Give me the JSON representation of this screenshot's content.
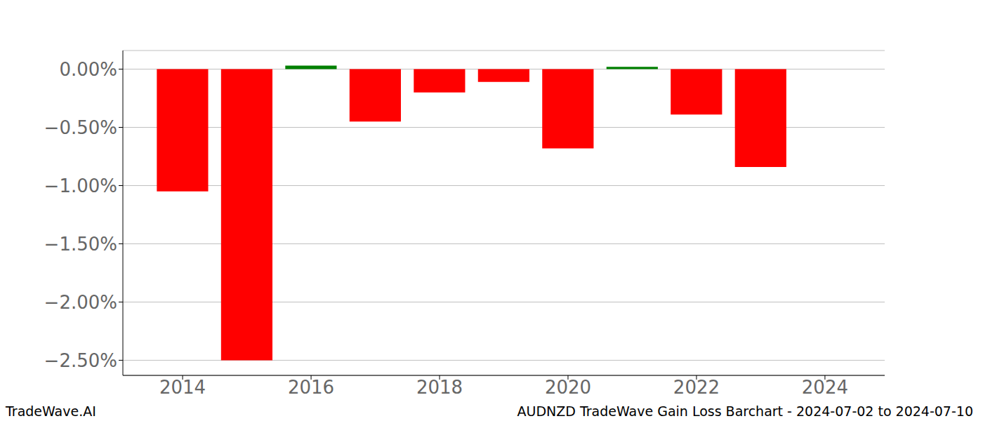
{
  "chart_data": {
    "type": "bar",
    "title": "AUDNZD TradeWave Gain Loss Barchart - 2024-07-02 to 2024-07-10",
    "annotations": [
      "TradeWave.AI"
    ],
    "x": [
      2014,
      2015,
      2016,
      2017,
      2018,
      2019,
      2020,
      2021,
      2022,
      2023
    ],
    "values": [
      -1.05,
      -2.5,
      0.03,
      -0.45,
      -0.2,
      -0.11,
      -0.68,
      0.02,
      -0.39,
      -0.84
    ],
    "colors": [
      "#ff0000",
      "#ff0000",
      "#008000",
      "#ff0000",
      "#ff0000",
      "#ff0000",
      "#ff0000",
      "#008000",
      "#ff0000",
      "#ff0000"
    ],
    "xlim": [
      2013.07,
      2024.93
    ],
    "xticks": [
      2014,
      2016,
      2018,
      2020,
      2022,
      2024
    ],
    "ylim": [
      -2.63,
      0.16
    ],
    "yticks": [
      {
        "value": 0,
        "label": "0.00%"
      },
      {
        "value": -0.5,
        "label": "−0.50%"
      },
      {
        "value": -1,
        "label": "−1.00%"
      },
      {
        "value": -1.5,
        "label": "−1.50%"
      },
      {
        "value": -2,
        "label": "−2.00%"
      },
      {
        "value": -2.5,
        "label": "−2.50%"
      }
    ],
    "grid": true
  }
}
